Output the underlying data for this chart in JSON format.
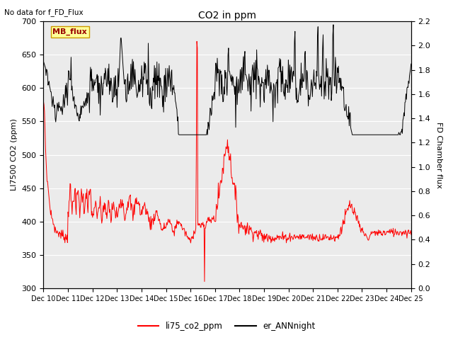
{
  "title": "CO2 in ppm",
  "top_left_text": "No data for f_FD_Flux",
  "ylabel_left": "LI7500 CO2 (ppm)",
  "ylabel_right": "FD Chamber flux",
  "ylim_left": [
    300,
    700
  ],
  "ylim_right": [
    0.0,
    2.2
  ],
  "yticks_left": [
    300,
    350,
    400,
    450,
    500,
    550,
    600,
    650,
    700
  ],
  "yticks_right": [
    0.0,
    0.2,
    0.4,
    0.6,
    0.8,
    1.0,
    1.2,
    1.4,
    1.6,
    1.8,
    2.0,
    2.2
  ],
  "xtick_labels": [
    "Dec 10",
    "Dec 11",
    "Dec 12",
    "Dec 13",
    "Dec 14",
    "Dec 15",
    "Dec 16",
    "Dec 17",
    "Dec 18",
    "Dec 19",
    "Dec 20",
    "Dec 21",
    "Dec 22",
    "Dec 23",
    "Dec 24",
    "Dec 25"
  ],
  "legend_entries": [
    "li75_co2_ppm",
    "er_ANNnight"
  ],
  "mb_flux_box_color": "#ffff99",
  "mb_flux_box_edge": "#cc9900",
  "mb_flux_text": "MB_flux",
  "background_color": "#ebebeb",
  "line_color_red": "red",
  "line_color_black": "black",
  "grid_color": "white"
}
